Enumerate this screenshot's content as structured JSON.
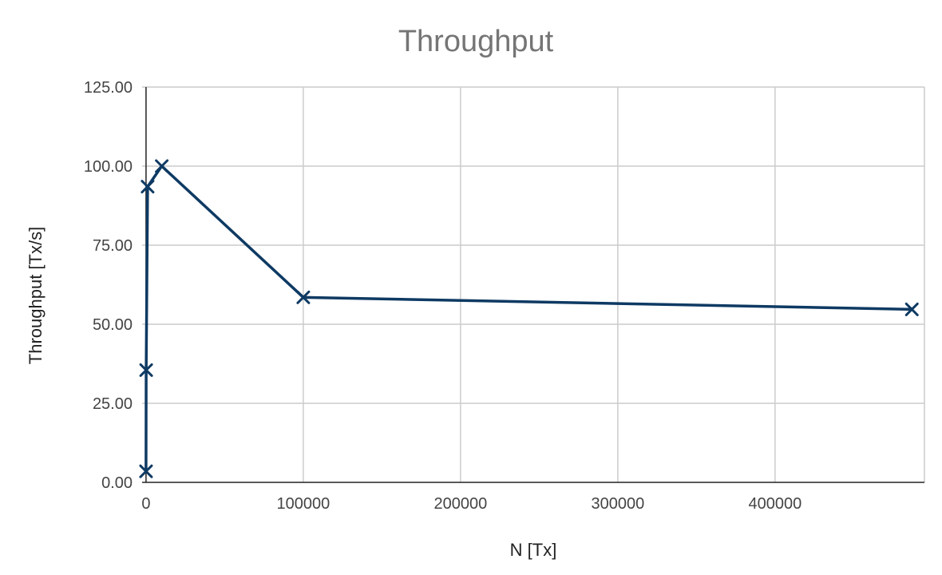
{
  "chart_data": {
    "type": "line",
    "title": "Throughput",
    "xlabel": "N [Tx]",
    "ylabel": "Throughput [Tx/s]",
    "xlim": [
      -2500,
      495000
    ],
    "ylim": [
      0,
      125
    ],
    "x_ticks": [
      0,
      100000,
      200000,
      300000,
      400000
    ],
    "x_tick_labels": [
      "0",
      "100000",
      "200000",
      "300000",
      "400000"
    ],
    "y_ticks": [
      0,
      25,
      50,
      75,
      100,
      125
    ],
    "y_tick_labels": [
      "0.00",
      "25.00",
      "50.00",
      "75.00",
      "100.00",
      "125.00"
    ],
    "grid": true,
    "legend": "none",
    "marker": "x",
    "color": "#0e3a63",
    "series": [
      {
        "x": [
          10,
          100,
          1000,
          10000,
          100000,
          487000
        ],
        "y": [
          3.5,
          35.5,
          93.5,
          100,
          58.5,
          54.7
        ]
      }
    ]
  }
}
